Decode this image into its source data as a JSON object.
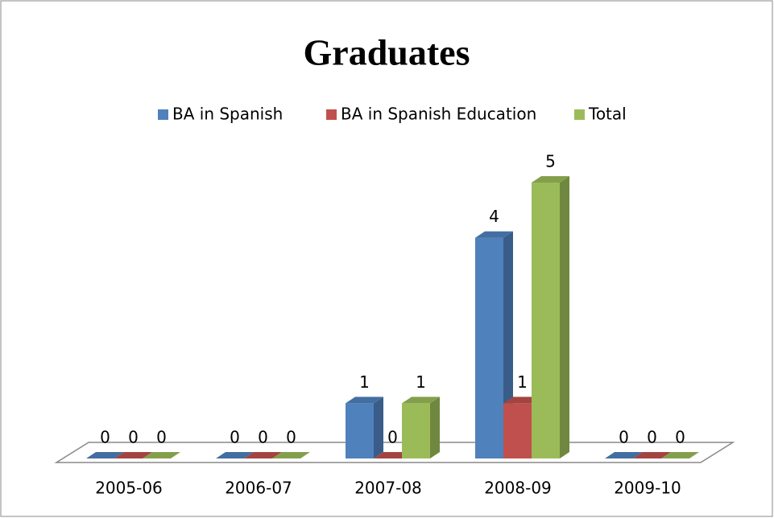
{
  "chart_data": {
    "type": "bar3d",
    "title": "Graduates",
    "categories": [
      "2005-06",
      "2006-07",
      "2007-08",
      "2008-09",
      "2009-10"
    ],
    "series": [
      {
        "name": "BA in Spanish",
        "color": "#4f81bd",
        "values": [
          0,
          0,
          1,
          4,
          0
        ]
      },
      {
        "name": "BA in Spanish Education",
        "color": "#c0504d",
        "values": [
          0,
          0,
          0,
          1,
          0
        ]
      },
      {
        "name": "Total",
        "color": "#9bbb59",
        "values": [
          0,
          0,
          1,
          5,
          0
        ]
      }
    ],
    "legend": "top",
    "data_labels": true
  }
}
